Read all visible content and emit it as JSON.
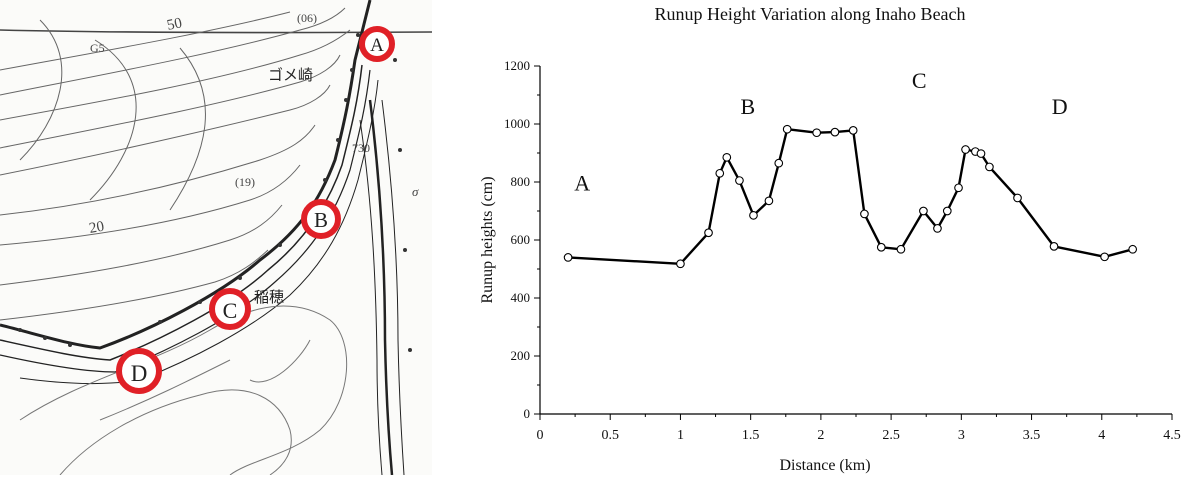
{
  "map": {
    "contour_labels": [
      "50",
      "20",
      "G5",
      "(06)",
      "730",
      "(19)",
      "σ"
    ],
    "place_names": [
      "ゴメ崎",
      "稲穂"
    ],
    "markers": [
      {
        "letter": "A"
      },
      {
        "letter": "B"
      },
      {
        "letter": "C"
      },
      {
        "letter": "D"
      }
    ],
    "colors": {
      "marker": "#e02027",
      "contour": "#555555",
      "coast": "#222222"
    }
  },
  "chart_data": {
    "type": "line",
    "title": "Runup Height Variation along Inaho Beach",
    "xlabel": "Distance (km)",
    "ylabel": "Runup heights (cm)",
    "xlim": [
      0,
      4.5
    ],
    "ylim": [
      0,
      1200
    ],
    "xticks": [
      "0",
      "0.5",
      "1",
      "1.5",
      "2",
      "2.5",
      "3",
      "3.5",
      "4",
      "4.5"
    ],
    "yticks": [
      "0",
      "200",
      "400",
      "600",
      "800",
      "1000",
      "1200"
    ],
    "grid": false,
    "series": [
      {
        "points": [
          [
            0.2,
            540
          ],
          [
            1.0,
            518
          ],
          [
            1.2,
            625
          ],
          [
            1.28,
            830
          ],
          [
            1.33,
            885
          ],
          [
            1.42,
            805
          ],
          [
            1.52,
            685
          ],
          [
            1.63,
            735
          ],
          [
            1.7,
            865
          ],
          [
            1.76,
            982
          ],
          [
            1.97,
            970
          ],
          [
            2.1,
            972
          ],
          [
            2.23,
            978
          ],
          [
            2.31,
            690
          ],
          [
            2.43,
            575
          ],
          [
            2.57,
            568
          ],
          [
            2.73,
            700
          ],
          [
            2.83,
            640
          ],
          [
            2.9,
            700
          ],
          [
            2.98,
            780
          ],
          [
            3.03,
            912
          ],
          [
            3.1,
            905
          ],
          [
            3.14,
            898
          ],
          [
            3.2,
            852
          ],
          [
            3.4,
            745
          ],
          [
            3.66,
            578
          ],
          [
            4.02,
            542
          ],
          [
            4.22,
            568
          ]
        ]
      }
    ],
    "annotations": [
      {
        "text": "A",
        "x": 0.3,
        "y": 770
      },
      {
        "text": "B",
        "x": 1.48,
        "y": 1035
      },
      {
        "text": "C",
        "x": 2.7,
        "y": 1125
      },
      {
        "text": "D",
        "x": 3.7,
        "y": 1035
      }
    ],
    "colors": {
      "line": "#000000",
      "marker_fill": "#ffffff"
    }
  }
}
